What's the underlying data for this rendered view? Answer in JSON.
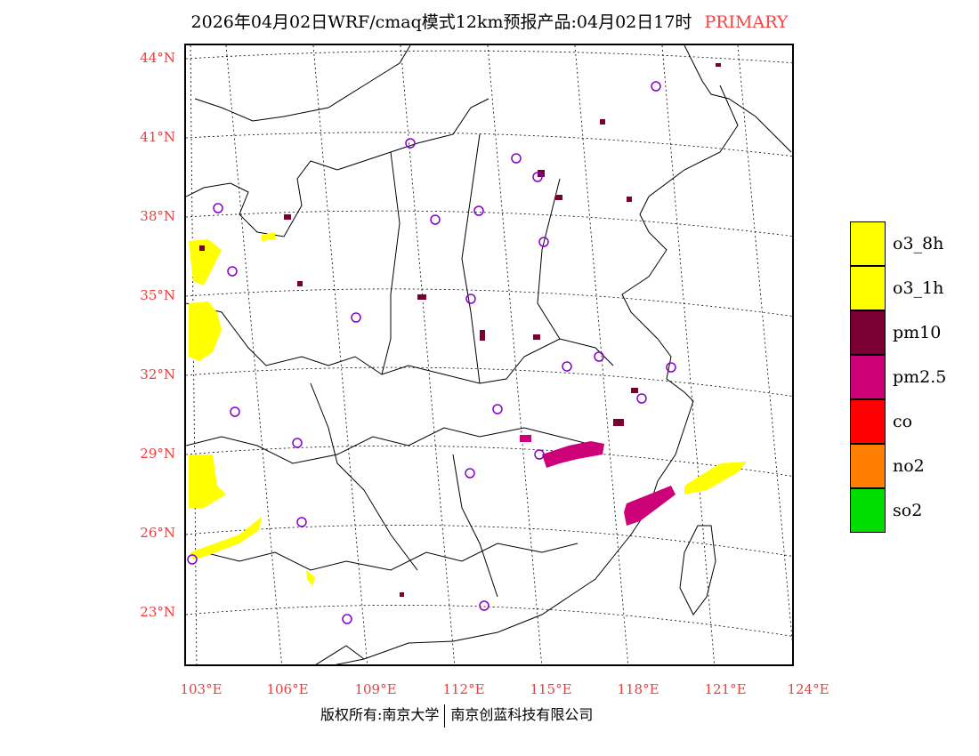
{
  "title": {
    "main": "2026年04月02日WRF/cmaq模式12km预报产品:04月02日17时",
    "tag": "PRIMARY"
  },
  "axes": {
    "latitudes": [
      "44°N",
      "41°N",
      "38°N",
      "35°N",
      "32°N",
      "29°N",
      "26°N",
      "23°N"
    ],
    "longitudes": [
      "103°E",
      "106°E",
      "109°E",
      "112°E",
      "115°E",
      "118°E",
      "121°E",
      "124°E"
    ]
  },
  "legend": [
    {
      "label": "o3_8h",
      "color": "#ffff00"
    },
    {
      "label": "o3_1h",
      "color": "#ffff00"
    },
    {
      "label": "pm10",
      "color": "#7a0033"
    },
    {
      "label": "pm2.5",
      "color": "#cc0077"
    },
    {
      "label": "co",
      "color": "#ff0000"
    },
    {
      "label": "no2",
      "color": "#ff8000"
    },
    {
      "label": "so2",
      "color": "#00dd00"
    }
  ],
  "colors": {
    "axis_label": "#e84040",
    "station_circle": "#8800cc",
    "o3": "#ffff00",
    "pm10": "#7a0033",
    "pm25": "#cc0077"
  },
  "footer": {
    "left": "版权所有:南京大学",
    "right": "南京创蓝科技有限公司"
  }
}
